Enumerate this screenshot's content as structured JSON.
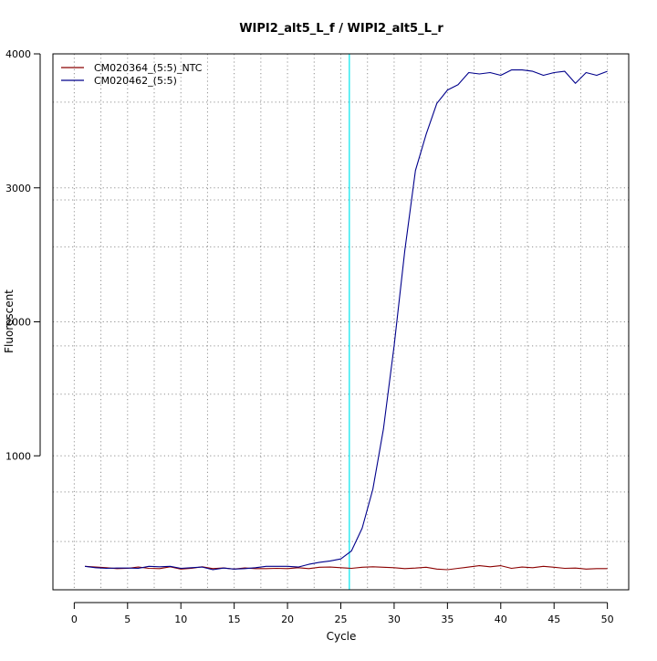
{
  "chart_data": {
    "type": "line",
    "title": "WIPI2_alt5_L_f / WIPI2_alt5_L_r",
    "xlabel": "Cycle",
    "ylabel": "Fluorescent",
    "xlim": [
      -2,
      52
    ],
    "ylim": [
      0,
      4000
    ],
    "x_ticks": [
      0,
      5,
      10,
      15,
      20,
      25,
      30,
      35,
      40,
      45,
      50
    ],
    "y_ticks": [
      1000,
      2000,
      3000,
      4000
    ],
    "x_grid": [
      2.5,
      7.5,
      12.5,
      17.5,
      22.5,
      27.5,
      32.5,
      37.5,
      42.5,
      47.5
    ],
    "y_grid": [
      360,
      730,
      1000,
      1460,
      1820,
      2000,
      2560,
      2910,
      3000,
      3640,
      4000
    ],
    "grid": true,
    "legend_position": "top-left",
    "threshold": {
      "x": 25.8,
      "color": "#00e5ee"
    },
    "x": [
      1,
      2,
      3,
      4,
      5,
      6,
      7,
      8,
      9,
      10,
      11,
      12,
      13,
      14,
      15,
      16,
      17,
      18,
      19,
      20,
      21,
      22,
      23,
      24,
      25,
      26,
      27,
      28,
      29,
      30,
      31,
      32,
      33,
      34,
      35,
      36,
      37,
      38,
      39,
      40,
      41,
      42,
      43,
      44,
      45,
      46,
      47,
      48,
      49,
      50
    ],
    "series": [
      {
        "name": "CM020364_(5:5)_NTC",
        "color": "#8b0000",
        "values": [
          175,
          170,
          165,
          158,
          160,
          170,
          160,
          158,
          172,
          155,
          160,
          172,
          158,
          163,
          155,
          163,
          158,
          158,
          160,
          158,
          165,
          158,
          168,
          170,
          165,
          160,
          168,
          172,
          168,
          165,
          158,
          162,
          168,
          155,
          150,
          160,
          170,
          180,
          172,
          180,
          160,
          170,
          165,
          175,
          168,
          160,
          162,
          155,
          158,
          158
        ]
      },
      {
        "name": "CM020462_(5:5)",
        "color": "#00008b",
        "values": [
          175,
          165,
          160,
          162,
          162,
          160,
          175,
          172,
          175,
          160,
          165,
          170,
          150,
          162,
          155,
          158,
          165,
          175,
          175,
          175,
          170,
          190,
          205,
          215,
          230,
          290,
          460,
          750,
          1200,
          1820,
          2530,
          3130,
          3400,
          3630,
          3730,
          3770,
          3860,
          3850,
          3860,
          3840,
          3880,
          3880,
          3870,
          3840,
          3860,
          3870,
          3780,
          3860,
          3840,
          3870
        ]
      }
    ]
  }
}
